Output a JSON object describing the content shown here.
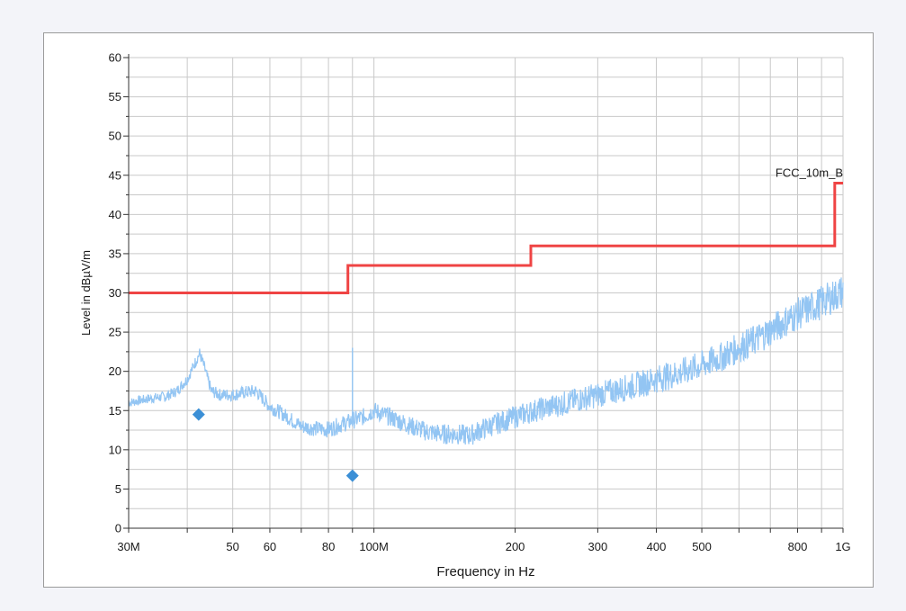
{
  "chart_data": {
    "type": "line",
    "xlabel": "Frequency in Hz",
    "ylabel": "Level in dBµV/m",
    "x_scale": "log",
    "xlim": [
      30000000,
      1000000000
    ],
    "ylim": [
      0,
      60
    ],
    "grid": true,
    "x_ticks": [
      {
        "value": 30000000,
        "label": "30M"
      },
      {
        "value": 50000000,
        "label": "50"
      },
      {
        "value": 60000000,
        "label": "60"
      },
      {
        "value": 80000000,
        "label": "80"
      },
      {
        "value": 100000000,
        "label": "100M"
      },
      {
        "value": 200000000,
        "label": "200"
      },
      {
        "value": 300000000,
        "label": "300"
      },
      {
        "value": 400000000,
        "label": "400"
      },
      {
        "value": 500000000,
        "label": "500"
      },
      {
        "value": 800000000,
        "label": "800"
      },
      {
        "value": 1000000000,
        "label": "1G"
      }
    ],
    "y_ticks": [
      0,
      5,
      10,
      15,
      20,
      25,
      30,
      35,
      40,
      45,
      50,
      55,
      60
    ],
    "limit_line": {
      "name": "FCC_10m_B",
      "color": "#ef4444",
      "points": [
        [
          30000000,
          30
        ],
        [
          88000000,
          30
        ],
        [
          88000000,
          33.5
        ],
        [
          216000000,
          33.5
        ],
        [
          216000000,
          36
        ],
        [
          960000000,
          36
        ],
        [
          960000000,
          44
        ],
        [
          1000000000,
          44
        ]
      ]
    },
    "scan_trace": {
      "color": "#93c5f3",
      "points": [
        [
          30000000,
          16.0
        ],
        [
          33000000,
          16.5
        ],
        [
          36000000,
          16.8
        ],
        [
          38000000,
          17.5
        ],
        [
          40000000,
          19.0
        ],
        [
          41500000,
          21.0
        ],
        [
          42500000,
          22.3
        ],
        [
          43500000,
          20.5
        ],
        [
          45000000,
          17.5
        ],
        [
          47000000,
          17.0
        ],
        [
          50000000,
          17.0
        ],
        [
          53000000,
          17.3
        ],
        [
          56000000,
          17.5
        ],
        [
          58000000,
          16.5
        ],
        [
          60000000,
          15.5
        ],
        [
          63000000,
          14.8
        ],
        [
          66000000,
          14.0
        ],
        [
          70000000,
          13.0
        ],
        [
          75000000,
          12.7
        ],
        [
          80000000,
          12.6
        ],
        [
          85000000,
          13.2
        ],
        [
          90000000,
          13.7
        ],
        [
          95000000,
          14.2
        ],
        [
          100000000,
          15.0
        ],
        [
          110000000,
          14.0
        ],
        [
          120000000,
          13.0
        ],
        [
          130000000,
          12.3
        ],
        [
          140000000,
          12.0
        ],
        [
          150000000,
          12.0
        ],
        [
          160000000,
          11.8
        ],
        [
          170000000,
          12.6
        ],
        [
          180000000,
          13.2
        ],
        [
          200000000,
          14.2
        ],
        [
          220000000,
          15.0
        ],
        [
          250000000,
          15.8
        ],
        [
          300000000,
          17.0
        ],
        [
          350000000,
          18.0
        ],
        [
          400000000,
          19.0
        ],
        [
          450000000,
          19.8
        ],
        [
          500000000,
          20.8
        ],
        [
          550000000,
          21.8
        ],
        [
          600000000,
          23.0
        ],
        [
          650000000,
          24.0
        ],
        [
          700000000,
          25.2
        ],
        [
          750000000,
          26.3
        ],
        [
          800000000,
          27.3
        ],
        [
          850000000,
          28.0
        ],
        [
          900000000,
          28.8
        ],
        [
          950000000,
          29.5
        ],
        [
          1000000000,
          30.2
        ]
      ],
      "spike": {
        "x": 90000000,
        "y": 23.0
      }
    },
    "final_measurements": {
      "color": "#3b8fd6",
      "points": [
        [
          42300000,
          14.5
        ],
        [
          90000000,
          6.7
        ]
      ]
    }
  }
}
